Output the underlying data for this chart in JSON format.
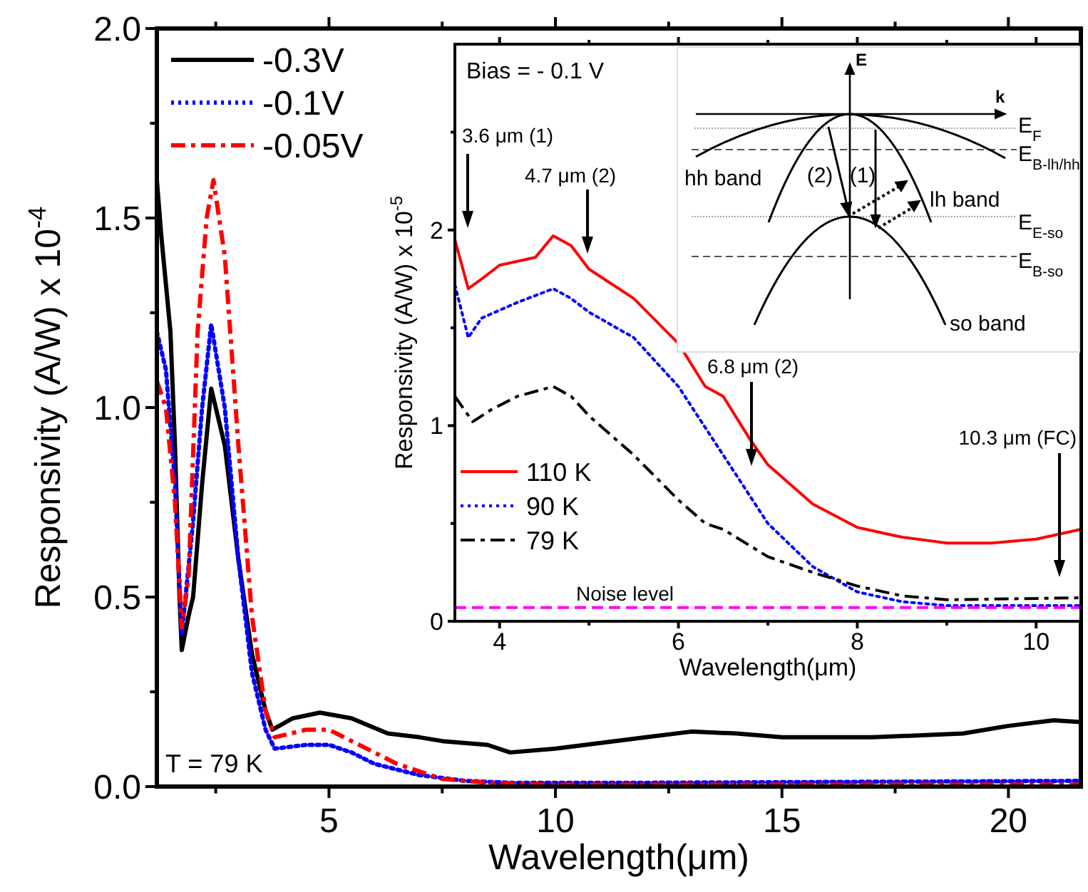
{
  "chart_data": [
    {
      "type": "line",
      "xlabel": "Wavelength(μm)",
      "ylabel": "Responsivity (A/W) x 10$^{-4}$",
      "xlim": [
        1.2,
        21.6
      ],
      "ylim": [
        0,
        2
      ],
      "xticks": [
        {
          "value": 2.5,
          "label": null
        },
        5,
        {
          "value": 7.5,
          "label": null
        },
        10,
        {
          "value": 12.5,
          "label": null
        },
        15,
        {
          "value": 17.5,
          "label": null
        },
        20
      ],
      "yticks": [
        {
          "value": 0,
          "label": "0.0"
        },
        {
          "value": 0.25,
          "label": null
        },
        0.5,
        {
          "value": 0.75,
          "label": null
        },
        {
          "value": 1,
          "label": "1.0"
        },
        {
          "value": 1.25,
          "label": null
        },
        1.5,
        {
          "value": 1.75,
          "label": null
        },
        {
          "value": 2,
          "label": "2.0"
        }
      ],
      "legend": "top left",
      "annotations": [
        "T = 79 K"
      ],
      "series": [
        {
          "name": "-0.3V",
          "color": "#000000",
          "line_style": "solid",
          "x": [
            1.2,
            1.3,
            1.5,
            1.6,
            1.7,
            1.75,
            1.9,
            2.0,
            2.2,
            2.4,
            2.7,
            3.0,
            3.3,
            3.6,
            3.75,
            4.2,
            4.8,
            5.5,
            6.3,
            7,
            7.5,
            8.5,
            9,
            10,
            12,
            13,
            14,
            15,
            17,
            19,
            20,
            21,
            21.6
          ],
          "values": [
            1.6,
            1.45,
            1.2,
            0.9,
            0.5,
            0.36,
            0.45,
            0.5,
            0.8,
            1.05,
            0.9,
            0.6,
            0.35,
            0.2,
            0.15,
            0.18,
            0.195,
            0.18,
            0.14,
            0.13,
            0.12,
            0.11,
            0.09,
            0.1,
            0.13,
            0.145,
            0.14,
            0.13,
            0.13,
            0.14,
            0.16,
            0.175,
            0.17
          ]
        },
        {
          "name": "-0.1V",
          "color": "#0000ff",
          "line_style": "dotted",
          "x": [
            1.2,
            1.4,
            1.6,
            1.75,
            2.0,
            2.2,
            2.4,
            2.7,
            3.0,
            3.3,
            3.6,
            3.8,
            4.5,
            5.0,
            5.5,
            6,
            7,
            8,
            9,
            12,
            21.6
          ],
          "values": [
            1.2,
            1.1,
            0.8,
            0.4,
            0.7,
            1.0,
            1.22,
            1.0,
            0.6,
            0.3,
            0.15,
            0.1,
            0.11,
            0.11,
            0.09,
            0.06,
            0.03,
            0.015,
            0.01,
            0.01,
            0.015
          ]
        },
        {
          "name": "-0.05V",
          "color": "#ff0000",
          "line_style": "dashed",
          "x": [
            1.2,
            1.4,
            1.6,
            1.75,
            1.9,
            2.1,
            2.3,
            2.45,
            2.7,
            3.0,
            3.3,
            3.6,
            3.8,
            4.5,
            5,
            5.5,
            6.5,
            7.5,
            8.5,
            10,
            21.6
          ],
          "values": [
            1.07,
            1.0,
            0.75,
            0.42,
            0.55,
            1.2,
            1.5,
            1.6,
            1.4,
            0.9,
            0.45,
            0.2,
            0.13,
            0.15,
            0.15,
            0.12,
            0.06,
            0.02,
            0.01,
            0.005,
            0.005
          ]
        }
      ]
    },
    {
      "type": "line",
      "xlabel": "Wavelength(μm)",
      "ylabel": "Responsivity (A/W) x 10$^{-5}$",
      "xlim": [
        3.5,
        10.5
      ],
      "ylim": [
        0,
        2.95
      ],
      "xticks": [
        4,
        {
          "value": 5,
          "label": null
        },
        6,
        {
          "value": 7,
          "label": null
        },
        8,
        {
          "value": 9,
          "label": null
        },
        10
      ],
      "yticks": [
        0,
        {
          "value": 0.5,
          "label": null
        },
        1,
        {
          "value": 1.5,
          "label": null
        },
        2,
        {
          "value": 2.5,
          "label": null
        }
      ],
      "legend": "left",
      "annotations": [
        "Bias = - 0.1 V",
        "3.6 μm (1)",
        "4.7 μm (2)",
        "6.8 μm (2)",
        "10.3 μm (FC)"
      ],
      "ref_lines": [
        {
          "axis": "y",
          "value": 0.07,
          "label": "Noise level",
          "color": "#ff00ff",
          "line_style": "dashed"
        }
      ],
      "series": [
        {
          "name": "110 K",
          "color": "#ff0000",
          "line_style": "solid",
          "x": [
            3.5,
            3.65,
            3.8,
            4.0,
            4.3,
            4.4,
            4.6,
            4.8,
            5.0,
            5.5,
            6.0,
            6.3,
            6.5,
            6.8,
            7.0,
            7.5,
            8.0,
            8.5,
            9.0,
            9.5,
            10.0,
            10.5
          ],
          "values": [
            1.95,
            1.7,
            1.75,
            1.82,
            1.85,
            1.86,
            1.97,
            1.92,
            1.8,
            1.65,
            1.42,
            1.2,
            1.15,
            0.93,
            0.8,
            0.6,
            0.48,
            0.43,
            0.4,
            0.4,
            0.42,
            0.47
          ]
        },
        {
          "name": "90 K",
          "color": "#0000ff",
          "line_style": "dotted",
          "x": [
            3.5,
            3.65,
            3.8,
            4.2,
            4.6,
            4.8,
            5.0,
            5.5,
            6.0,
            6.5,
            7.0,
            7.5,
            8.0,
            8.5,
            9,
            10.5
          ],
          "values": [
            1.72,
            1.45,
            1.55,
            1.63,
            1.7,
            1.65,
            1.58,
            1.45,
            1.2,
            0.85,
            0.5,
            0.28,
            0.15,
            0.1,
            0.08,
            0.08
          ]
        },
        {
          "name": "79 K",
          "color": "#000000",
          "line_style": "dashed",
          "x": [
            3.5,
            3.7,
            3.9,
            4.2,
            4.6,
            4.8,
            5.0,
            5.5,
            6.0,
            6.3,
            6.5,
            7.0,
            7.5,
            8.0,
            8.5,
            9.0,
            10.5
          ],
          "values": [
            1.15,
            1.02,
            1.08,
            1.15,
            1.2,
            1.15,
            1.05,
            0.85,
            0.62,
            0.5,
            0.47,
            0.33,
            0.25,
            0.18,
            0.13,
            0.11,
            0.12
          ]
        }
      ]
    },
    {
      "type": "other",
      "annotations": [
        "E",
        "k",
        "E$_{F}$",
        "E$_{B-lh/hh}$",
        "hh band",
        "(2)",
        "(1)",
        "lh band",
        "E$_{E-so}$",
        "E$_{B-so}$",
        "so band"
      ]
    }
  ]
}
